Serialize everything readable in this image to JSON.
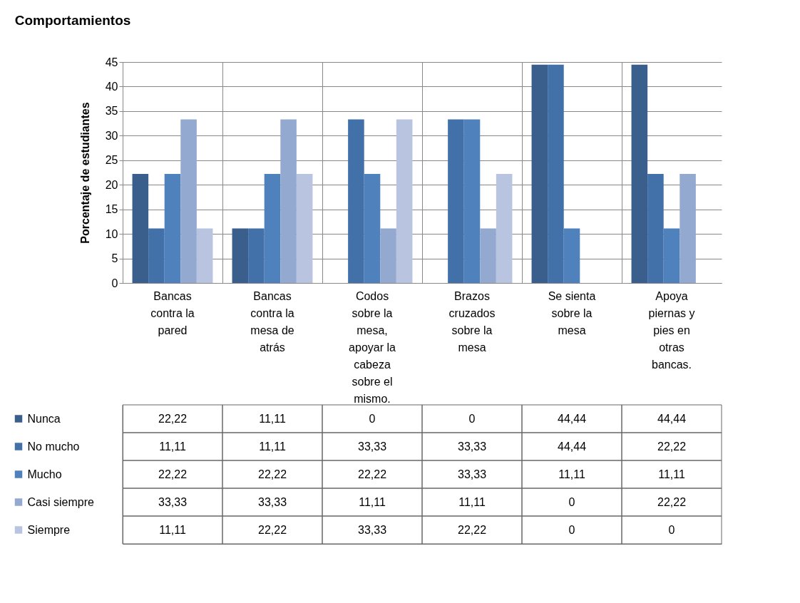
{
  "chart_data": {
    "type": "bar",
    "title": "Comportamientos",
    "ylabel": "Porcentaje de estudiantes",
    "categories": [
      "Bancas contra la pared",
      "Bancas contra la mesa de atrás",
      "Codos sobre la mesa, apoyar la cabeza sobre el mismo.",
      "Brazos cruzados sobre la mesa",
      "Se sienta sobre la mesa",
      "Apoya piernas y pies en otras bancas."
    ],
    "series": [
      {
        "name": "Nunca",
        "color": "#3a5f8c",
        "values": [
          22.22,
          11.11,
          0,
          0,
          44.44,
          44.44
        ],
        "value_labels": [
          "22,22",
          "11,11",
          "0",
          "0",
          "44,44",
          "44,44"
        ]
      },
      {
        "name": "No mucho",
        "color": "#4271aa",
        "values": [
          11.11,
          11.11,
          33.33,
          33.33,
          44.44,
          22.22
        ],
        "value_labels": [
          "11,11",
          "11,11",
          "33,33",
          "33,33",
          "44,44",
          "22,22"
        ]
      },
      {
        "name": "Mucho",
        "color": "#4f81bd",
        "values": [
          22.22,
          22.22,
          22.22,
          33.33,
          11.11,
          11.11
        ],
        "value_labels": [
          "22,22",
          "22,22",
          "22,22",
          "33,33",
          "11,11",
          "11,11"
        ]
      },
      {
        "name": "Casi siempre",
        "color": "#93a9d0",
        "values": [
          33.33,
          33.33,
          11.11,
          11.11,
          0,
          22.22
        ],
        "value_labels": [
          "33,33",
          "33,33",
          "11,11",
          "11,11",
          "0",
          "22,22"
        ]
      },
      {
        "name": "Siempre",
        "color": "#b9c5e0",
        "values": [
          11.11,
          22.22,
          33.33,
          22.22,
          0,
          0
        ],
        "value_labels": [
          "11,11",
          "22,22",
          "33,33",
          "22,22",
          "0",
          "0"
        ]
      }
    ],
    "ylim": [
      0,
      45
    ],
    "yticks": [
      0,
      5,
      10,
      15,
      20,
      25,
      30,
      35,
      40,
      45
    ],
    "grid": "y",
    "legend": "bottom left"
  }
}
